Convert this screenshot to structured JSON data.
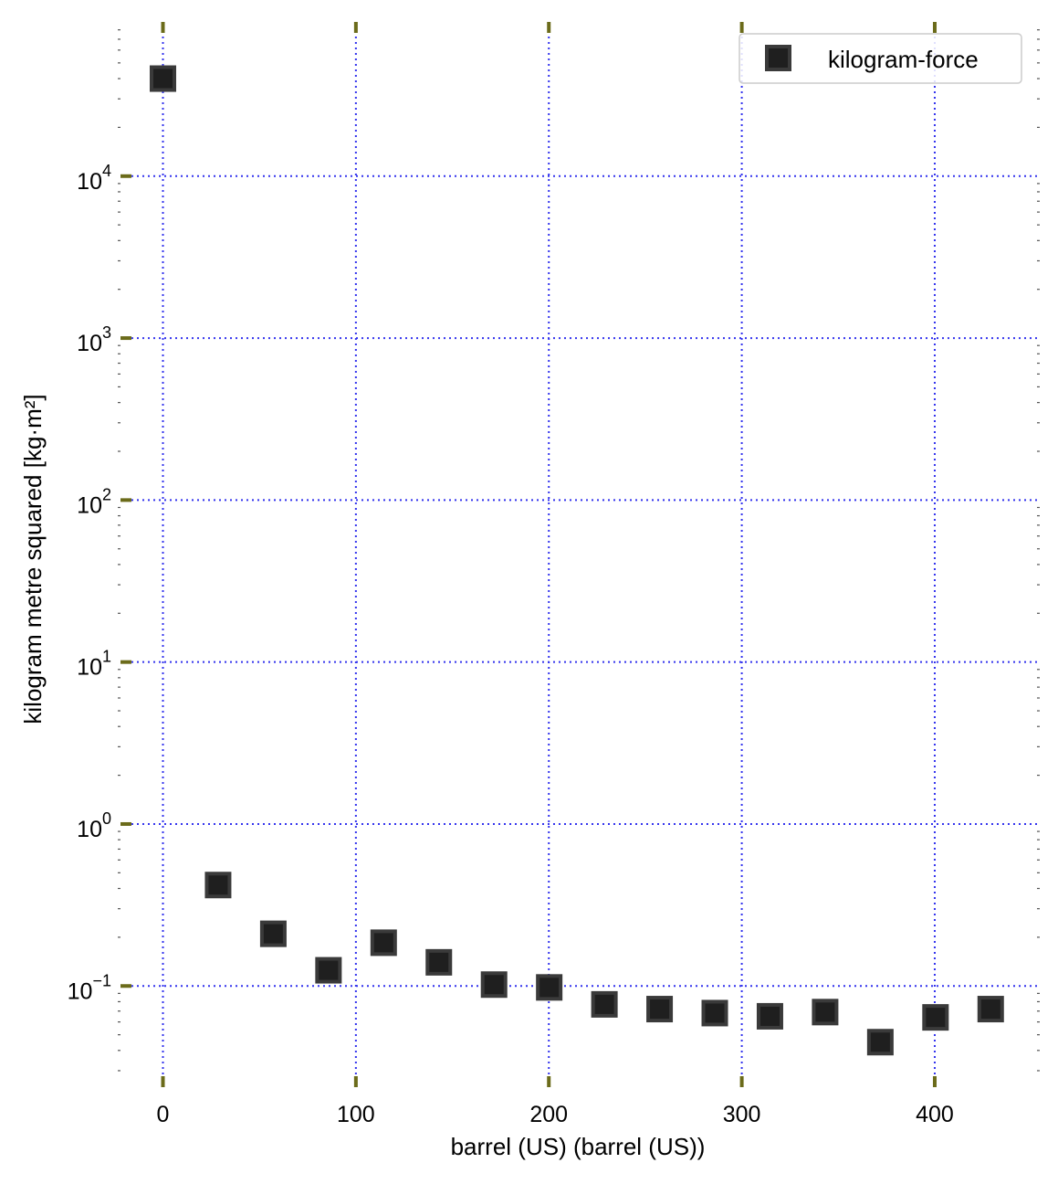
{
  "chart_data": {
    "type": "scatter",
    "title": "",
    "xlabel": "barrel (US) (barrel (US))",
    "ylabel": "kilogram metre squared [kg·m²]",
    "xlim": [
      -22,
      453
    ],
    "ylim": [
      0.025,
      85000
    ],
    "yscale": "log",
    "x_ticks": [
      0,
      100,
      200,
      300,
      400
    ],
    "x_tick_labels": [
      "0",
      "100",
      "200",
      "300",
      "400"
    ],
    "y_ticks": [
      0.1,
      1,
      10,
      100,
      1000,
      10000
    ],
    "y_tick_labels": [
      {
        "base": "10",
        "exp": "−1"
      },
      {
        "base": "10",
        "exp": "0"
      },
      {
        "base": "10",
        "exp": "1"
      },
      {
        "base": "10",
        "exp": "2"
      },
      {
        "base": "10",
        "exp": "3"
      },
      {
        "base": "10",
        "exp": "4"
      }
    ],
    "grid": true,
    "legend_position": "top-right",
    "colors": {
      "marker_fill": "#1f1f1f",
      "marker_edge": "#3a3a3a",
      "grid": "#3333ee",
      "major_tick": "#6b6b1a",
      "minor_tick": "#555555"
    },
    "series": [
      {
        "name": "kilogram-force",
        "marker": "square",
        "x": [
          0,
          28.6,
          57.2,
          85.8,
          114.4,
          143.0,
          171.6,
          200.2,
          228.8,
          257.4,
          286.0,
          314.6,
          343.2,
          371.8,
          400.4,
          429.0
        ],
        "y": [
          40000,
          0.42,
          0.21,
          0.125,
          0.185,
          0.14,
          0.102,
          0.098,
          0.077,
          0.072,
          0.068,
          0.065,
          0.069,
          0.045,
          0.064,
          0.072
        ]
      }
    ]
  }
}
